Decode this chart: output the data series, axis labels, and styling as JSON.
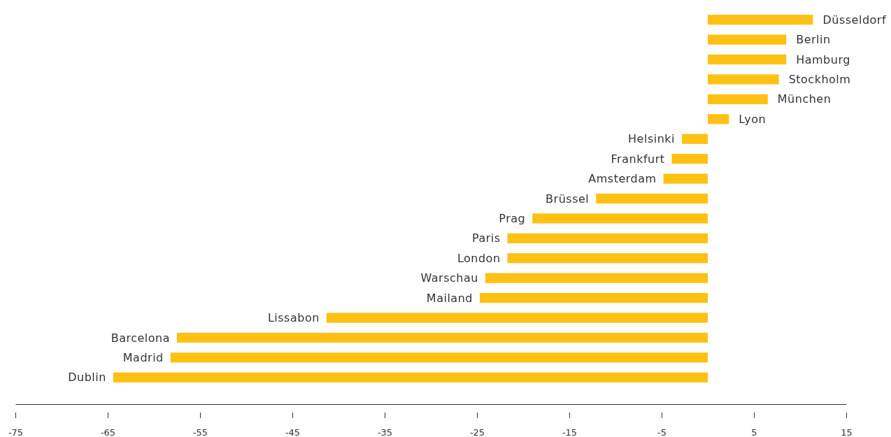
{
  "chart_data": {
    "type": "bar",
    "orientation": "horizontal",
    "categories": [
      "Düsseldorf",
      "Berlin",
      "Hamburg",
      "Stockholm",
      "München",
      "Lyon",
      "Helsinki",
      "Frankfurt",
      "Amsterdam",
      "Brüssel",
      "Prag",
      "Paris",
      "London",
      "Warschau",
      "Mailand",
      "Lissabon",
      "Barcelona",
      "Madrid",
      "Dublin"
    ],
    "values": [
      11.4,
      8.5,
      8.5,
      7.7,
      6.5,
      2.3,
      -2.8,
      -3.9,
      -4.8,
      -12.1,
      -19.0,
      -21.7,
      -21.7,
      -24.1,
      -24.7,
      -41.3,
      -57.5,
      -58.2,
      -64.4
    ],
    "color": "#fdc113",
    "xlim": [
      -75,
      15
    ],
    "xticks": [
      -75,
      -65,
      -55,
      -45,
      -35,
      -25,
      -15,
      -5,
      5,
      15
    ],
    "grid": false
  }
}
